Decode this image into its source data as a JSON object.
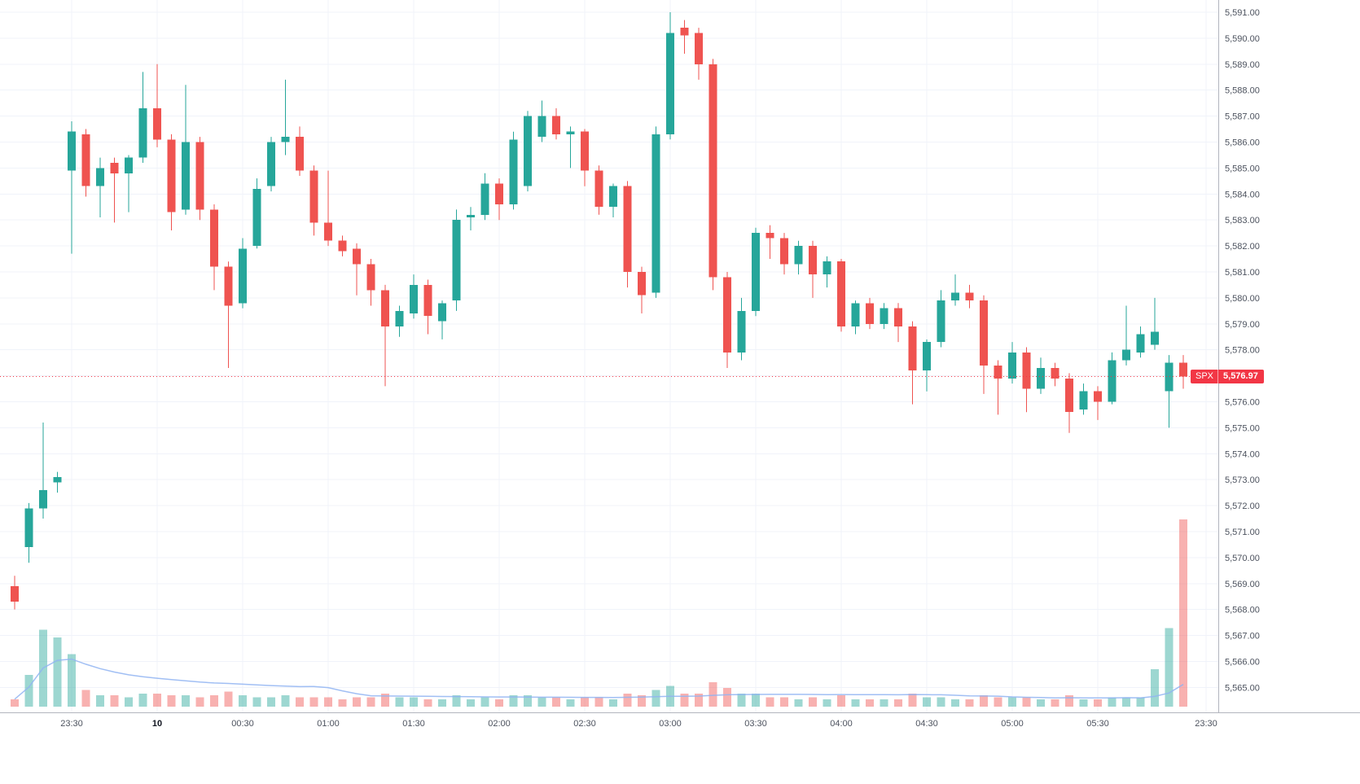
{
  "chart_data": {
    "type": "candlestick",
    "symbol": "SPX",
    "last_price": "5,576.97",
    "last_price_value": 5576.97,
    "ylim": [
      5564.04,
      5591.47
    ],
    "grid": true,
    "legend_position": "none",
    "volume_pane": true,
    "colors": {
      "up": "#26a69a",
      "down": "#ef5350",
      "vol_up": "rgba(38,166,154,0.45)",
      "vol_down": "rgba(239,83,80,0.45)",
      "grid": "#f0f3fa",
      "axis_text": "#4c525e",
      "day_label_text": "#131722",
      "axis_line": "#b2b5be",
      "last_price": "#f23645",
      "volume_ma": "#90b4f2",
      "background": "#ffffff"
    },
    "price_ticks": [
      {
        "value": 5591,
        "label": "5,591.00"
      },
      {
        "value": 5590,
        "label": "5,590.00"
      },
      {
        "value": 5589,
        "label": "5,589.00"
      },
      {
        "value": 5588,
        "label": "5,588.00"
      },
      {
        "value": 5587,
        "label": "5,587.00"
      },
      {
        "value": 5586,
        "label": "5,586.00"
      },
      {
        "value": 5585,
        "label": "5,585.00"
      },
      {
        "value": 5584,
        "label": "5,584.00"
      },
      {
        "value": 5583,
        "label": "5,583.00"
      },
      {
        "value": 5582,
        "label": "5,582.00"
      },
      {
        "value": 5581,
        "label": "5,581.00"
      },
      {
        "value": 5580,
        "label": "5,580.00"
      },
      {
        "value": 5579,
        "label": "5,579.00"
      },
      {
        "value": 5578,
        "label": "5,578.00"
      },
      {
        "value": 5577,
        "label": "5,577.00"
      },
      {
        "value": 5576,
        "label": "5,576.00"
      },
      {
        "value": 5575,
        "label": "5,575.00"
      },
      {
        "value": 5574,
        "label": "5,574.00"
      },
      {
        "value": 5573,
        "label": "5,573.00"
      },
      {
        "value": 5572,
        "label": "5,572.00"
      },
      {
        "value": 5571,
        "label": "5,571.00"
      },
      {
        "value": 5570,
        "label": "5,570.00"
      },
      {
        "value": 5569,
        "label": "5,569.00"
      },
      {
        "value": 5568,
        "label": "5,568.00"
      },
      {
        "value": 5567,
        "label": "5,567.00"
      },
      {
        "value": 5566,
        "label": "5,566.00"
      },
      {
        "value": 5565,
        "label": "5,565.00"
      }
    ],
    "time_ticks": [
      {
        "i": 4,
        "label": "23:30"
      },
      {
        "i": 10,
        "label": "10",
        "day": true
      },
      {
        "i": 16,
        "label": "00:30"
      },
      {
        "i": 22,
        "label": "01:00"
      },
      {
        "i": 28,
        "label": "01:30"
      },
      {
        "i": 34,
        "label": "02:00"
      },
      {
        "i": 40,
        "label": "02:30"
      },
      {
        "i": 46,
        "label": "03:00"
      },
      {
        "i": 52,
        "label": "03:30"
      },
      {
        "i": 58,
        "label": "04:00"
      },
      {
        "i": 64,
        "label": "04:30"
      },
      {
        "i": 70,
        "label": "05:00"
      },
      {
        "i": 76,
        "label": "05:30"
      },
      {
        "i": 83.6,
        "label": "23:30"
      }
    ],
    "candles_format": [
      "open",
      "high",
      "low",
      "close",
      "volume_rel"
    ],
    "candles": [
      [
        5568.9,
        5569.3,
        5568.0,
        5568.3,
        4
      ],
      [
        5570.4,
        5572.1,
        5569.8,
        5571.9,
        17
      ],
      [
        5571.9,
        5575.2,
        5571.5,
        5572.6,
        41
      ],
      [
        5572.9,
        5573.3,
        5572.5,
        5573.1,
        37
      ],
      [
        5584.9,
        5586.8,
        5581.7,
        5586.4,
        28
      ],
      [
        5586.3,
        5586.5,
        5583.9,
        5584.3,
        9
      ],
      [
        5584.3,
        5585.4,
        5583.1,
        5585.0,
        6
      ],
      [
        5585.2,
        5585.4,
        5582.9,
        5584.8,
        6
      ],
      [
        5584.8,
        5585.5,
        5583.3,
        5585.4,
        5
      ],
      [
        5585.4,
        5588.7,
        5585.2,
        5587.3,
        7
      ],
      [
        5587.3,
        5589.0,
        5585.8,
        5586.1,
        7
      ],
      [
        5586.1,
        5586.3,
        5582.6,
        5583.3,
        6
      ],
      [
        5583.4,
        5588.2,
        5583.2,
        5586.0,
        6
      ],
      [
        5586.0,
        5586.2,
        5583.0,
        5583.4,
        5
      ],
      [
        5583.4,
        5583.6,
        5580.3,
        5581.2,
        6
      ],
      [
        5581.2,
        5581.4,
        5577.3,
        5579.7,
        8
      ],
      [
        5579.8,
        5582.3,
        5579.6,
        5581.9,
        6
      ],
      [
        5582.0,
        5584.6,
        5581.9,
        5584.2,
        5
      ],
      [
        5584.3,
        5586.2,
        5584.1,
        5586.0,
        5
      ],
      [
        5586.0,
        5588.4,
        5585.5,
        5586.2,
        6
      ],
      [
        5586.2,
        5586.6,
        5584.7,
        5584.9,
        5
      ],
      [
        5584.9,
        5585.1,
        5582.4,
        5582.9,
        5
      ],
      [
        5582.9,
        5584.9,
        5582.0,
        5582.2,
        5
      ],
      [
        5582.2,
        5582.4,
        5581.6,
        5581.8,
        4
      ],
      [
        5581.9,
        5582.1,
        5580.1,
        5581.3,
        5
      ],
      [
        5581.3,
        5581.5,
        5579.7,
        5580.3,
        5
      ],
      [
        5580.3,
        5580.5,
        5576.6,
        5578.9,
        7
      ],
      [
        5578.9,
        5579.7,
        5578.5,
        5579.5,
        5
      ],
      [
        5579.4,
        5580.9,
        5579.2,
        5580.5,
        5
      ],
      [
        5580.5,
        5580.7,
        5578.6,
        5579.3,
        4
      ],
      [
        5579.1,
        5579.9,
        5578.4,
        5579.8,
        4
      ],
      [
        5579.9,
        5583.4,
        5579.5,
        5583.0,
        6
      ],
      [
        5583.1,
        5583.5,
        5582.6,
        5583.2,
        4
      ],
      [
        5583.2,
        5584.8,
        5583.0,
        5584.4,
        5
      ],
      [
        5584.4,
        5584.6,
        5583.0,
        5583.6,
        4
      ],
      [
        5583.6,
        5586.4,
        5583.4,
        5586.1,
        6
      ],
      [
        5584.3,
        5587.2,
        5584.1,
        5587.0,
        6
      ],
      [
        5586.2,
        5587.6,
        5586.0,
        5587.0,
        5
      ],
      [
        5587.0,
        5587.3,
        5586.1,
        5586.3,
        5
      ],
      [
        5586.3,
        5586.6,
        5585.0,
        5586.4,
        4
      ],
      [
        5586.4,
        5586.5,
        5584.3,
        5584.9,
        5
      ],
      [
        5584.9,
        5585.1,
        5583.2,
        5583.5,
        5
      ],
      [
        5583.5,
        5584.4,
        5583.1,
        5584.3,
        4
      ],
      [
        5584.3,
        5584.5,
        5580.4,
        5581.0,
        7
      ],
      [
        5581.0,
        5581.2,
        5579.4,
        5580.1,
        6
      ],
      [
        5580.2,
        5586.6,
        5580.0,
        5586.3,
        9
      ],
      [
        5586.3,
        5591.0,
        5586.1,
        5590.2,
        11
      ],
      [
        5590.4,
        5590.7,
        5589.4,
        5590.1,
        7
      ],
      [
        5590.2,
        5590.4,
        5588.4,
        5589.0,
        7
      ],
      [
        5589.0,
        5589.2,
        5580.3,
        5580.8,
        13
      ],
      [
        5580.8,
        5581.0,
        5577.3,
        5577.9,
        10
      ],
      [
        5577.9,
        5580.0,
        5577.6,
        5579.5,
        7
      ],
      [
        5579.5,
        5582.7,
        5579.3,
        5582.5,
        7
      ],
      [
        5582.5,
        5582.8,
        5581.5,
        5582.3,
        5
      ],
      [
        5582.3,
        5582.5,
        5580.9,
        5581.3,
        5
      ],
      [
        5581.3,
        5582.2,
        5580.9,
        5582.0,
        4
      ],
      [
        5582.0,
        5582.2,
        5580.0,
        5580.9,
        5
      ],
      [
        5580.9,
        5581.6,
        5580.4,
        5581.4,
        4
      ],
      [
        5581.4,
        5581.5,
        5578.7,
        5578.9,
        6
      ],
      [
        5578.9,
        5579.9,
        5578.6,
        5579.8,
        4
      ],
      [
        5579.8,
        5580.0,
        5578.8,
        5579.0,
        4
      ],
      [
        5579.0,
        5579.8,
        5578.8,
        5579.6,
        4
      ],
      [
        5579.6,
        5579.8,
        5578.3,
        5578.9,
        4
      ],
      [
        5578.9,
        5579.1,
        5575.9,
        5577.2,
        7
      ],
      [
        5577.2,
        5578.4,
        5576.4,
        5578.3,
        5
      ],
      [
        5578.3,
        5580.3,
        5578.1,
        5579.9,
        5
      ],
      [
        5579.9,
        5580.9,
        5579.7,
        5580.2,
        4
      ],
      [
        5580.2,
        5580.5,
        5579.6,
        5579.9,
        4
      ],
      [
        5579.9,
        5580.1,
        5576.3,
        5577.4,
        6
      ],
      [
        5577.4,
        5577.6,
        5575.5,
        5576.9,
        5
      ],
      [
        5576.9,
        5578.3,
        5576.7,
        5577.9,
        5
      ],
      [
        5577.9,
        5578.1,
        5575.6,
        5576.5,
        5
      ],
      [
        5576.5,
        5577.7,
        5576.3,
        5577.3,
        4
      ],
      [
        5577.3,
        5577.5,
        5576.6,
        5576.9,
        4
      ],
      [
        5576.9,
        5577.1,
        5574.8,
        5575.6,
        6
      ],
      [
        5575.7,
        5576.7,
        5575.5,
        5576.4,
        4
      ],
      [
        5576.4,
        5576.6,
        5575.3,
        5576.0,
        4
      ],
      [
        5576.0,
        5577.9,
        5575.9,
        5577.6,
        5
      ],
      [
        5577.6,
        5579.7,
        5577.4,
        5578.0,
        5
      ],
      [
        5577.9,
        5578.9,
        5577.7,
        5578.6,
        5
      ],
      [
        5578.2,
        5580.0,
        5578.0,
        5578.7,
        20
      ],
      [
        5576.4,
        5577.8,
        5575.0,
        5577.5,
        42
      ],
      [
        5577.5,
        5577.8,
        5576.5,
        5576.97,
        100
      ]
    ]
  }
}
